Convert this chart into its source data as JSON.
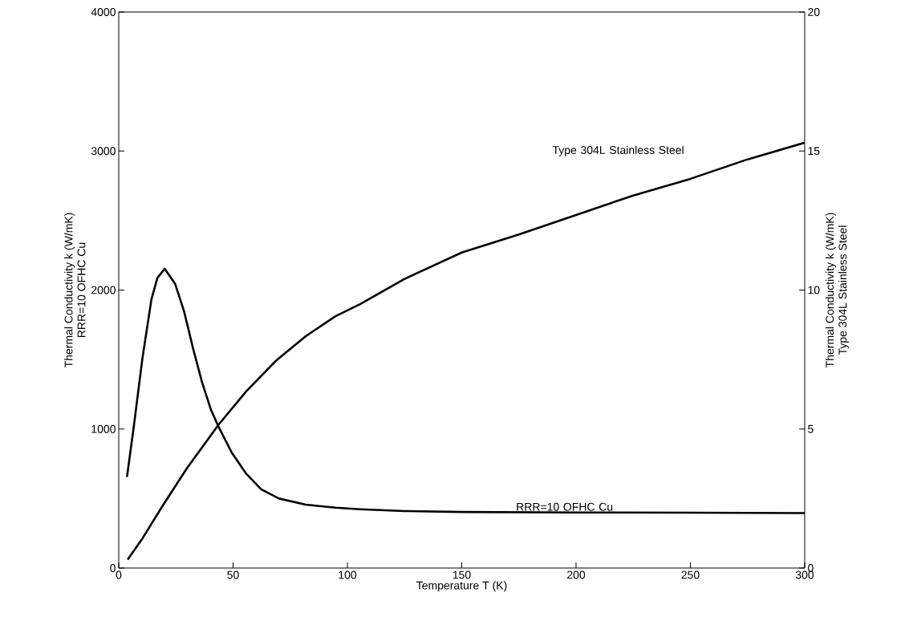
{
  "chart_data": {
    "type": "line",
    "xlabel": "Temperature T (K)",
    "ylabel": [
      "Thermal Conductivity k (W/mK)",
      "RRR=10 OFHC Cu"
    ],
    "y2label": [
      "Thermal Conductivity k (W/mK)",
      "Type 304L Stainless Steel"
    ],
    "xlim": [
      0,
      300
    ],
    "xticks": [
      0,
      50,
      100,
      150,
      200,
      250,
      300
    ],
    "ylim": [
      0,
      4000
    ],
    "yticks": [
      0,
      1000,
      2000,
      3000,
      4000
    ],
    "y2lim": [
      0,
      20
    ],
    "y2ticks": [
      0,
      5,
      10,
      15,
      20
    ],
    "series": [
      {
        "name": "RRR=10 OFHC Cu",
        "color": "#000000",
        "x": [
          3.6,
          6.5,
          10.4,
          14.3,
          16.9,
          20.1,
          24.7,
          28.6,
          32.5,
          36.4,
          40.3,
          43.6,
          49.4,
          55.8,
          62.3,
          70.1,
          81.8,
          94.8,
          105.7,
          125,
          150,
          200,
          250,
          300
        ],
        "values": [
          655,
          1007,
          1514,
          1933,
          2087,
          2153,
          2043,
          1845,
          1580,
          1338,
          1140,
          1018,
          831,
          677,
          566,
          500,
          456,
          434,
          423,
          410,
          403,
          400,
          398,
          395
        ]
      },
      {
        "name": "Type 304L Stainless Steel",
        "color": "#000000",
        "axis": "y2",
        "x": [
          3.9,
          10.4,
          19.5,
          29.9,
          43.6,
          55.8,
          68.8,
          81.8,
          94.8,
          105.7,
          125,
          150,
          175,
          200,
          225,
          250,
          275,
          300
        ],
        "values": [
          0.3,
          1.07,
          2.28,
          3.6,
          5.15,
          6.36,
          7.46,
          8.34,
          9.06,
          9.5,
          10.4,
          11.35,
          12.0,
          12.7,
          13.4,
          14.0,
          14.7,
          15.3
        ]
      }
    ]
  }
}
